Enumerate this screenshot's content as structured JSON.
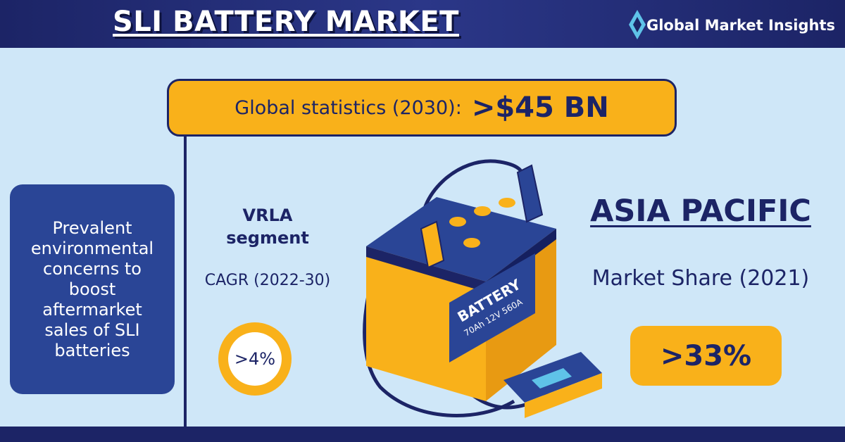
{
  "header": {
    "title": "SLI BATTERY MARKET",
    "brand": "Global Market Insights"
  },
  "stats": {
    "label": "Global statistics (2030):",
    "value": ">$45 BN"
  },
  "driver": {
    "lines": [
      "Prevalent",
      "environmental",
      "concerns to",
      "boost",
      "aftermarket",
      "sales of SLI",
      "batteries"
    ]
  },
  "segment": {
    "lines": [
      "VRLA",
      "segment"
    ],
    "metric": "CAGR (2022-30)",
    "value": ">4%"
  },
  "battery": {
    "label": "BATTERY",
    "spec": "70Ah 12V 560A"
  },
  "region": {
    "name": "ASIA PACIFIC",
    "metric": "Market Share (2021)",
    "value": ">33%"
  }
}
